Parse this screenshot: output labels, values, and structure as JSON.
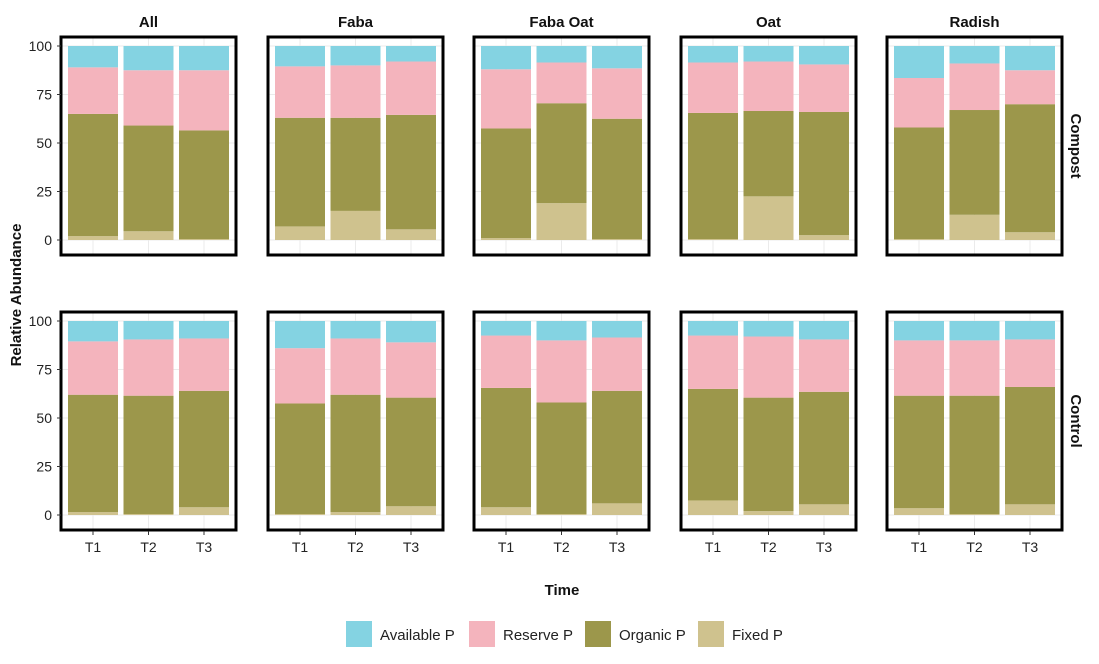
{
  "chart_data": {
    "type": "bar",
    "stacked": true,
    "xlabel": "Time",
    "ylabel": "Relative Abundance",
    "ylim": [
      0,
      100
    ],
    "yticks": [
      0,
      25,
      50,
      75,
      100
    ],
    "categories": [
      "T1",
      "T2",
      "T3"
    ],
    "column_facets": [
      "All",
      "Faba",
      "Faba Oat",
      "Oat",
      "Radish"
    ],
    "row_facets": [
      "Compost",
      "Control"
    ],
    "stack_order_bottom_to_top": [
      "Fixed P",
      "Organic P",
      "Reserve P",
      "Available P"
    ],
    "legend": {
      "position": "bottom",
      "entries": [
        "Available P",
        "Reserve P",
        "Organic P",
        "Fixed P"
      ]
    },
    "colors": {
      "Available P": "#84D3E2",
      "Reserve P": "#F4B4BD",
      "Organic P": "#9C974B",
      "Fixed P": "#CFC28E"
    },
    "grid": true,
    "panels": [
      {
        "row": "Compost",
        "col": "All",
        "bars": [
          {
            "x": "T1",
            "Fixed P": 2,
            "Organic P": 63,
            "Reserve P": 24,
            "Available P": 11
          },
          {
            "x": "T2",
            "Fixed P": 4.5,
            "Organic P": 54.5,
            "Reserve P": 28.5,
            "Available P": 12.5
          },
          {
            "x": "T3",
            "Fixed P": 0.5,
            "Organic P": 56,
            "Reserve P": 31,
            "Available P": 12.5
          }
        ]
      },
      {
        "row": "Compost",
        "col": "Faba",
        "bars": [
          {
            "x": "T1",
            "Fixed P": 7,
            "Organic P": 56,
            "Reserve P": 26.5,
            "Available P": 10.5
          },
          {
            "x": "T2",
            "Fixed P": 15,
            "Organic P": 48,
            "Reserve P": 27,
            "Available P": 10
          },
          {
            "x": "T3",
            "Fixed P": 5.5,
            "Organic P": 59,
            "Reserve P": 27.5,
            "Available P": 8
          }
        ]
      },
      {
        "row": "Compost",
        "col": "Faba Oat",
        "bars": [
          {
            "x": "T1",
            "Fixed P": 1,
            "Organic P": 56.5,
            "Reserve P": 30.5,
            "Available P": 12
          },
          {
            "x": "T2",
            "Fixed P": 19,
            "Organic P": 51.5,
            "Reserve P": 21,
            "Available P": 8.5
          },
          {
            "x": "T3",
            "Fixed P": 0.5,
            "Organic P": 62,
            "Reserve P": 26,
            "Available P": 11.5
          }
        ]
      },
      {
        "row": "Compost",
        "col": "Oat",
        "bars": [
          {
            "x": "T1",
            "Fixed P": 0.5,
            "Organic P": 65,
            "Reserve P": 26,
            "Available P": 8.5
          },
          {
            "x": "T2",
            "Fixed P": 22.5,
            "Organic P": 44,
            "Reserve P": 25.5,
            "Available P": 8
          },
          {
            "x": "T3",
            "Fixed P": 2.5,
            "Organic P": 63.5,
            "Reserve P": 24.5,
            "Available P": 9.5
          }
        ]
      },
      {
        "row": "Compost",
        "col": "Radish",
        "bars": [
          {
            "x": "T1",
            "Fixed P": 0.5,
            "Organic P": 57.5,
            "Reserve P": 25.5,
            "Available P": 16.5
          },
          {
            "x": "T2",
            "Fixed P": 13,
            "Organic P": 54,
            "Reserve P": 24,
            "Available P": 9
          },
          {
            "x": "T3",
            "Fixed P": 4,
            "Organic P": 66,
            "Reserve P": 17.5,
            "Available P": 12.5
          }
        ]
      },
      {
        "row": "Control",
        "col": "All",
        "bars": [
          {
            "x": "T1",
            "Fixed P": 1.5,
            "Organic P": 60.5,
            "Reserve P": 27.5,
            "Available P": 10.5
          },
          {
            "x": "T2",
            "Fixed P": 0.5,
            "Organic P": 61,
            "Reserve P": 29,
            "Available P": 9.5
          },
          {
            "x": "T3",
            "Fixed P": 4,
            "Organic P": 60,
            "Reserve P": 27,
            "Available P": 9
          }
        ]
      },
      {
        "row": "Control",
        "col": "Faba",
        "bars": [
          {
            "x": "T1",
            "Fixed P": 0.5,
            "Organic P": 57,
            "Reserve P": 28.5,
            "Available P": 14
          },
          {
            "x": "T2",
            "Fixed P": 1.5,
            "Organic P": 60.5,
            "Reserve P": 29,
            "Available P": 9
          },
          {
            "x": "T3",
            "Fixed P": 4.5,
            "Organic P": 56,
            "Reserve P": 28.5,
            "Available P": 11
          }
        ]
      },
      {
        "row": "Control",
        "col": "Faba Oat",
        "bars": [
          {
            "x": "T1",
            "Fixed P": 4,
            "Organic P": 61.5,
            "Reserve P": 27,
            "Available P": 7.5
          },
          {
            "x": "T2",
            "Fixed P": 0.5,
            "Organic P": 57.5,
            "Reserve P": 32,
            "Available P": 10
          },
          {
            "x": "T3",
            "Fixed P": 6,
            "Organic P": 58,
            "Reserve P": 27.5,
            "Available P": 8.5
          }
        ]
      },
      {
        "row": "Control",
        "col": "Oat",
        "bars": [
          {
            "x": "T1",
            "Fixed P": 7.5,
            "Organic P": 57.5,
            "Reserve P": 27.5,
            "Available P": 7.5
          },
          {
            "x": "T2",
            "Fixed P": 2,
            "Organic P": 58.5,
            "Reserve P": 31.5,
            "Available P": 8
          },
          {
            "x": "T3",
            "Fixed P": 5.5,
            "Organic P": 58,
            "Reserve P": 27,
            "Available P": 9.5
          }
        ]
      },
      {
        "row": "Control",
        "col": "Radish",
        "bars": [
          {
            "x": "T1",
            "Fixed P": 3.5,
            "Organic P": 58,
            "Reserve P": 28.5,
            "Available P": 10
          },
          {
            "x": "T2",
            "Fixed P": 0.5,
            "Organic P": 61,
            "Reserve P": 28.5,
            "Available P": 10
          },
          {
            "x": "T3",
            "Fixed P": 5.5,
            "Organic P": 60.5,
            "Reserve P": 24.5,
            "Available P": 9.5
          }
        ]
      }
    ]
  }
}
